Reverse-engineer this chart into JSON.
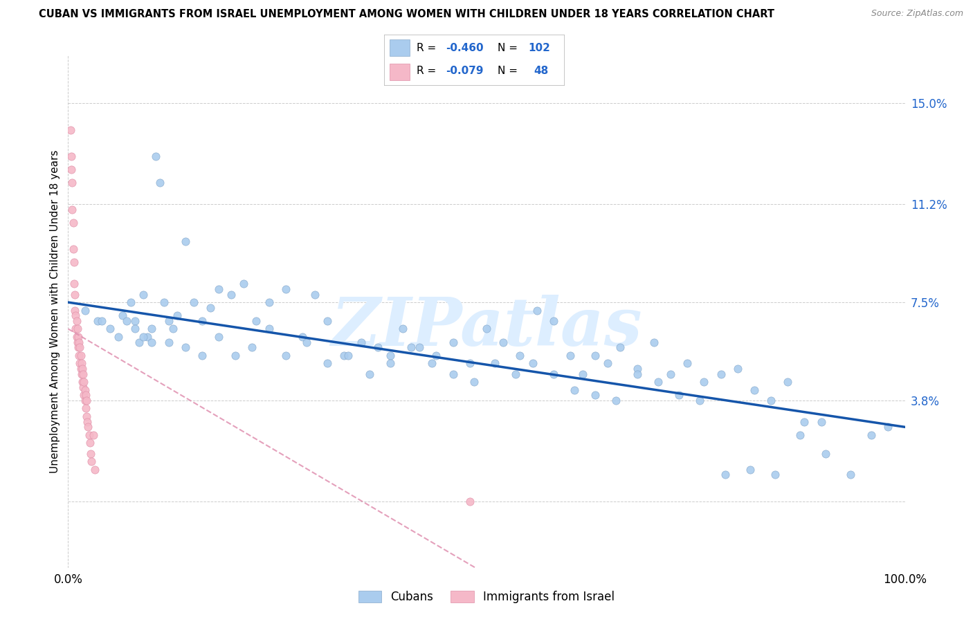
{
  "title": "CUBAN VS IMMIGRANTS FROM ISRAEL UNEMPLOYMENT AMONG WOMEN WITH CHILDREN UNDER 18 YEARS CORRELATION CHART",
  "source": "Source: ZipAtlas.com",
  "ylabel": "Unemployment Among Women with Children Under 18 years",
  "xlim": [
    0.0,
    1.0
  ],
  "ylim": [
    -0.025,
    0.168
  ],
  "ytick_vals": [
    0.0,
    0.038,
    0.075,
    0.112,
    0.15
  ],
  "ytick_labels": [
    "",
    "3.8%",
    "7.5%",
    "11.2%",
    "15.0%"
  ],
  "xtick_vals": [
    0.0,
    1.0
  ],
  "xtick_labels": [
    "0.0%",
    "100.0%"
  ],
  "cubans_R": -0.46,
  "cubans_N": 102,
  "israel_R": -0.079,
  "israel_N": 48,
  "cubans_scatter_color": "#aaccee",
  "cubans_edge_color": "#88aacc",
  "israel_scatter_color": "#f5b8c8",
  "israel_edge_color": "#e090a8",
  "trendline_cubans_color": "#1555aa",
  "trendline_israel_color": "#e090b0",
  "watermark_text": "ZIPatlas",
  "watermark_color": "#ddeeff",
  "background_color": "#ffffff",
  "title_fontsize": 11,
  "source_fontsize": 9,
  "tick_fontsize": 12,
  "cubans_x": [
    0.02,
    0.035,
    0.05,
    0.065,
    0.075,
    0.08,
    0.085,
    0.09,
    0.095,
    0.1,
    0.105,
    0.11,
    0.115,
    0.12,
    0.125,
    0.13,
    0.14,
    0.15,
    0.16,
    0.17,
    0.18,
    0.195,
    0.21,
    0.225,
    0.24,
    0.26,
    0.28,
    0.295,
    0.31,
    0.33,
    0.35,
    0.37,
    0.385,
    0.4,
    0.42,
    0.44,
    0.46,
    0.48,
    0.5,
    0.52,
    0.54,
    0.56,
    0.58,
    0.6,
    0.615,
    0.63,
    0.645,
    0.66,
    0.68,
    0.7,
    0.72,
    0.74,
    0.76,
    0.78,
    0.8,
    0.82,
    0.84,
    0.86,
    0.88,
    0.9,
    0.04,
    0.06,
    0.07,
    0.08,
    0.09,
    0.1,
    0.12,
    0.14,
    0.16,
    0.18,
    0.2,
    0.22,
    0.24,
    0.26,
    0.285,
    0.31,
    0.335,
    0.36,
    0.385,
    0.41,
    0.435,
    0.46,
    0.485,
    0.51,
    0.535,
    0.555,
    0.58,
    0.605,
    0.63,
    0.655,
    0.68,
    0.705,
    0.73,
    0.755,
    0.785,
    0.815,
    0.845,
    0.875,
    0.905,
    0.935,
    0.96,
    0.98
  ],
  "cubans_y": [
    0.072,
    0.068,
    0.065,
    0.07,
    0.075,
    0.068,
    0.06,
    0.078,
    0.062,
    0.065,
    0.13,
    0.12,
    0.075,
    0.068,
    0.065,
    0.07,
    0.098,
    0.075,
    0.068,
    0.073,
    0.08,
    0.078,
    0.082,
    0.068,
    0.075,
    0.08,
    0.062,
    0.078,
    0.068,
    0.055,
    0.06,
    0.058,
    0.055,
    0.065,
    0.058,
    0.055,
    0.06,
    0.052,
    0.065,
    0.06,
    0.055,
    0.072,
    0.068,
    0.055,
    0.048,
    0.055,
    0.052,
    0.058,
    0.05,
    0.06,
    0.048,
    0.052,
    0.045,
    0.048,
    0.05,
    0.042,
    0.038,
    0.045,
    0.03,
    0.03,
    0.068,
    0.062,
    0.068,
    0.065,
    0.062,
    0.06,
    0.06,
    0.058,
    0.055,
    0.062,
    0.055,
    0.058,
    0.065,
    0.055,
    0.06,
    0.052,
    0.055,
    0.048,
    0.052,
    0.058,
    0.052,
    0.048,
    0.045,
    0.052,
    0.048,
    0.052,
    0.048,
    0.042,
    0.04,
    0.038,
    0.048,
    0.045,
    0.04,
    0.038,
    0.01,
    0.012,
    0.01,
    0.025,
    0.018,
    0.01,
    0.025,
    0.028
  ],
  "israel_x": [
    0.003,
    0.004,
    0.004,
    0.005,
    0.005,
    0.006,
    0.006,
    0.007,
    0.007,
    0.008,
    0.008,
    0.009,
    0.009,
    0.01,
    0.01,
    0.011,
    0.011,
    0.012,
    0.012,
    0.013,
    0.013,
    0.014,
    0.014,
    0.015,
    0.015,
    0.016,
    0.016,
    0.017,
    0.017,
    0.018,
    0.018,
    0.019,
    0.019,
    0.02,
    0.02,
    0.021,
    0.021,
    0.022,
    0.022,
    0.023,
    0.024,
    0.025,
    0.026,
    0.027,
    0.028,
    0.03,
    0.032,
    0.48
  ],
  "israel_y": [
    0.14,
    0.13,
    0.125,
    0.12,
    0.11,
    0.105,
    0.095,
    0.09,
    0.082,
    0.078,
    0.072,
    0.07,
    0.065,
    0.068,
    0.062,
    0.065,
    0.06,
    0.062,
    0.058,
    0.06,
    0.055,
    0.058,
    0.052,
    0.055,
    0.05,
    0.052,
    0.048,
    0.05,
    0.045,
    0.048,
    0.043,
    0.045,
    0.04,
    0.042,
    0.038,
    0.04,
    0.035,
    0.038,
    0.032,
    0.03,
    0.028,
    0.025,
    0.022,
    0.018,
    0.015,
    0.025,
    0.012,
    0.0
  ]
}
